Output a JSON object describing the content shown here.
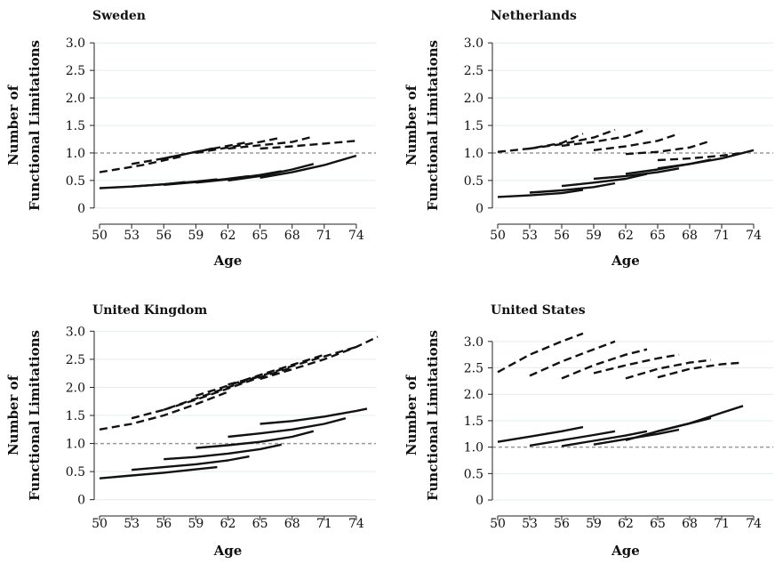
{
  "chart_data": [
    {
      "type": "line",
      "title": "Sweden",
      "xlabel": "Age",
      "ylabel": [
        "Number of",
        "Functional Limitations"
      ],
      "xticks": [
        50,
        53,
        56,
        59,
        62,
        65,
        68,
        71,
        74
      ],
      "yticks": [
        0,
        0.5,
        1.0,
        1.5,
        2.0,
        2.5,
        3.0
      ],
      "ytick_labels": [
        "0",
        "0.5",
        "1.0",
        "1.5",
        "2.0",
        "2.5",
        "3.0"
      ],
      "xlim": [
        49.5,
        76
      ],
      "ylim": [
        -0.1,
        3.1
      ],
      "reference_y": 1.0,
      "series": [
        {
          "style": "dashed",
          "x": [
            50,
            54,
            58
          ],
          "y": [
            0.65,
            0.78,
            0.95
          ]
        },
        {
          "style": "dashed",
          "x": [
            53,
            56,
            59,
            61
          ],
          "y": [
            0.8,
            0.9,
            1.02,
            1.1
          ]
        },
        {
          "style": "dashed",
          "x": [
            56,
            59,
            62,
            64
          ],
          "y": [
            0.9,
            1.02,
            1.13,
            1.2
          ]
        },
        {
          "style": "dashed",
          "x": [
            59,
            62,
            65,
            67
          ],
          "y": [
            1.0,
            1.1,
            1.2,
            1.28
          ]
        },
        {
          "style": "dashed",
          "x": [
            62,
            65,
            68,
            70
          ],
          "y": [
            1.08,
            1.14,
            1.2,
            1.3
          ]
        },
        {
          "style": "dashed",
          "x": [
            65,
            68,
            71,
            74
          ],
          "y": [
            1.08,
            1.12,
            1.17,
            1.22
          ]
        },
        {
          "style": "solid",
          "x": [
            50,
            53,
            56,
            58
          ],
          "y": [
            0.36,
            0.39,
            0.43,
            0.47
          ]
        },
        {
          "style": "solid",
          "x": [
            53,
            56,
            59,
            61
          ],
          "y": [
            0.39,
            0.43,
            0.48,
            0.52
          ]
        },
        {
          "style": "solid",
          "x": [
            56,
            59,
            62,
            64
          ],
          "y": [
            0.42,
            0.47,
            0.53,
            0.58
          ]
        },
        {
          "style": "solid",
          "x": [
            59,
            62,
            65,
            67
          ],
          "y": [
            0.46,
            0.52,
            0.6,
            0.67
          ]
        },
        {
          "style": "solid",
          "x": [
            62,
            65,
            68,
            70
          ],
          "y": [
            0.5,
            0.58,
            0.7,
            0.8
          ]
        },
        {
          "style": "solid",
          "x": [
            65,
            68,
            71,
            74
          ],
          "y": [
            0.55,
            0.65,
            0.78,
            0.95
          ]
        }
      ]
    },
    {
      "type": "line",
      "title": "Netherlands",
      "xlabel": "Age",
      "ylabel": [
        "Number of",
        "Functional Limitations"
      ],
      "xticks": [
        50,
        53,
        56,
        59,
        62,
        65,
        68,
        71,
        74
      ],
      "yticks": [
        0,
        0.5,
        1.0,
        1.5,
        2.0,
        2.5,
        3.0
      ],
      "ytick_labels": [
        "0",
        "0.5",
        "1.0",
        "1.5",
        "2.0",
        "2.5",
        "3.0"
      ],
      "xlim": [
        49.5,
        76
      ],
      "ylim": [
        -0.1,
        3.1
      ],
      "reference_y": 1.0,
      "series": [
        {
          "style": "dashed",
          "x": [
            50,
            53,
            56,
            58
          ],
          "y": [
            1.02,
            1.08,
            1.18,
            1.35
          ]
        },
        {
          "style": "dashed",
          "x": [
            53,
            56,
            59,
            61
          ],
          "y": [
            1.08,
            1.16,
            1.28,
            1.42
          ]
        },
        {
          "style": "dashed",
          "x": [
            56,
            59,
            62,
            64
          ],
          "y": [
            1.13,
            1.2,
            1.3,
            1.43
          ]
        },
        {
          "style": "dashed",
          "x": [
            59,
            62,
            65,
            67
          ],
          "y": [
            1.05,
            1.12,
            1.22,
            1.35
          ]
        },
        {
          "style": "dashed",
          "x": [
            62,
            65,
            68,
            70
          ],
          "y": [
            0.98,
            1.02,
            1.1,
            1.22
          ]
        },
        {
          "style": "dashed",
          "x": [
            65,
            68,
            71,
            73
          ],
          "y": [
            0.87,
            0.9,
            0.95,
            1.0
          ]
        },
        {
          "style": "solid",
          "x": [
            50,
            53,
            56,
            58
          ],
          "y": [
            0.2,
            0.23,
            0.27,
            0.33
          ]
        },
        {
          "style": "solid",
          "x": [
            53,
            56,
            59,
            61
          ],
          "y": [
            0.28,
            0.32,
            0.38,
            0.45
          ]
        },
        {
          "style": "solid",
          "x": [
            56,
            59,
            62,
            64
          ],
          "y": [
            0.4,
            0.46,
            0.53,
            0.62
          ]
        },
        {
          "style": "solid",
          "x": [
            59,
            62,
            65,
            67
          ],
          "y": [
            0.53,
            0.58,
            0.65,
            0.72
          ]
        },
        {
          "style": "solid",
          "x": [
            62,
            65,
            68,
            70
          ],
          "y": [
            0.62,
            0.7,
            0.8,
            0.88
          ]
        },
        {
          "style": "solid",
          "x": [
            65,
            68,
            71,
            74
          ],
          "y": [
            0.72,
            0.8,
            0.9,
            1.05
          ]
        }
      ]
    },
    {
      "type": "line",
      "title": "United Kingdom",
      "xlabel": "Age",
      "ylabel": [
        "Number of",
        "Functional Limitations"
      ],
      "xticks": [
        50,
        53,
        56,
        59,
        62,
        65,
        68,
        71,
        74
      ],
      "yticks": [
        0,
        0.5,
        1.0,
        1.5,
        2.0,
        2.5,
        3.0
      ],
      "ytick_labels": [
        "0",
        "0.5",
        "1.0",
        "1.5",
        "2.0",
        "2.5",
        "3.0"
      ],
      "xlim": [
        49.5,
        76
      ],
      "ylim": [
        -0.1,
        3.1
      ],
      "reference_y": 1.0,
      "series": [
        {
          "style": "dashed",
          "x": [
            50,
            53,
            56,
            59,
            62
          ],
          "y": [
            1.25,
            1.35,
            1.5,
            1.7,
            1.92
          ]
        },
        {
          "style": "dashed",
          "x": [
            53,
            56,
            59,
            62,
            65
          ],
          "y": [
            1.45,
            1.6,
            1.8,
            2.0,
            2.2
          ]
        },
        {
          "style": "dashed",
          "x": [
            56,
            59,
            62,
            65,
            68
          ],
          "y": [
            1.6,
            1.78,
            1.98,
            2.18,
            2.35
          ]
        },
        {
          "style": "dashed",
          "x": [
            59,
            62,
            65,
            68,
            71
          ],
          "y": [
            1.85,
            2.03,
            2.22,
            2.4,
            2.58
          ]
        },
        {
          "style": "dashed",
          "x": [
            62,
            65,
            68,
            71,
            74
          ],
          "y": [
            2.05,
            2.2,
            2.38,
            2.55,
            2.72
          ]
        },
        {
          "style": "dashed",
          "x": [
            65,
            68,
            71,
            74,
            76
          ],
          "y": [
            2.15,
            2.32,
            2.5,
            2.72,
            2.9
          ]
        },
        {
          "style": "solid",
          "x": [
            50,
            53,
            56,
            59,
            61
          ],
          "y": [
            0.38,
            0.43,
            0.48,
            0.54,
            0.58
          ]
        },
        {
          "style": "solid",
          "x": [
            53,
            56,
            59,
            62,
            64
          ],
          "y": [
            0.53,
            0.58,
            0.63,
            0.7,
            0.77
          ]
        },
        {
          "style": "solid",
          "x": [
            56,
            59,
            62,
            65,
            67
          ],
          "y": [
            0.72,
            0.76,
            0.82,
            0.9,
            0.98
          ]
        },
        {
          "style": "solid",
          "x": [
            59,
            62,
            65,
            68,
            70
          ],
          "y": [
            0.92,
            0.97,
            1.03,
            1.12,
            1.22
          ]
        },
        {
          "style": "solid",
          "x": [
            62,
            65,
            68,
            71,
            73
          ],
          "y": [
            1.12,
            1.18,
            1.25,
            1.35,
            1.45
          ]
        },
        {
          "style": "solid",
          "x": [
            65,
            68,
            71,
            74,
            75
          ],
          "y": [
            1.35,
            1.4,
            1.48,
            1.58,
            1.62
          ]
        }
      ]
    },
    {
      "type": "line",
      "title": "United States",
      "xlabel": "Age",
      "ylabel": [
        "Number of",
        "Functional Limitations"
      ],
      "xticks": [
        50,
        53,
        56,
        59,
        62,
        65,
        68,
        71,
        74
      ],
      "yticks": [
        0,
        0.5,
        1.0,
        1.5,
        2.0,
        2.5,
        3.0
      ],
      "ytick_labels": [
        "0",
        "0.5",
        "1.0",
        "1.5",
        "2.0",
        "2.5",
        "3.0"
      ],
      "xlim": [
        49.5,
        76
      ],
      "ylim": [
        -0.1,
        3.3
      ],
      "reference_y": 1.0,
      "series": [
        {
          "style": "dashed",
          "x": [
            50,
            53,
            56,
            58
          ],
          "y": [
            2.42,
            2.75,
            3.0,
            3.15
          ]
        },
        {
          "style": "dashed",
          "x": [
            53,
            56,
            59,
            61
          ],
          "y": [
            2.35,
            2.62,
            2.85,
            3.0
          ]
        },
        {
          "style": "dashed",
          "x": [
            56,
            59,
            62,
            64
          ],
          "y": [
            2.3,
            2.55,
            2.75,
            2.85
          ]
        },
        {
          "style": "dashed",
          "x": [
            59,
            62,
            65,
            67
          ],
          "y": [
            2.4,
            2.55,
            2.68,
            2.75
          ]
        },
        {
          "style": "dashed",
          "x": [
            62,
            65,
            68,
            70
          ],
          "y": [
            2.3,
            2.48,
            2.6,
            2.65
          ]
        },
        {
          "style": "dashed",
          "x": [
            65,
            68,
            71,
            73
          ],
          "y": [
            2.32,
            2.48,
            2.57,
            2.6
          ]
        },
        {
          "style": "solid",
          "x": [
            50,
            53,
            56,
            58
          ],
          "y": [
            1.1,
            1.2,
            1.3,
            1.38
          ]
        },
        {
          "style": "solid",
          "x": [
            53,
            56,
            59,
            61
          ],
          "y": [
            1.03,
            1.13,
            1.23,
            1.3
          ]
        },
        {
          "style": "solid",
          "x": [
            56,
            59,
            62,
            64
          ],
          "y": [
            1.02,
            1.12,
            1.22,
            1.3
          ]
        },
        {
          "style": "solid",
          "x": [
            59,
            62,
            65,
            67
          ],
          "y": [
            1.05,
            1.15,
            1.25,
            1.33
          ]
        },
        {
          "style": "solid",
          "x": [
            62,
            65,
            68,
            70
          ],
          "y": [
            1.13,
            1.3,
            1.45,
            1.55
          ]
        },
        {
          "style": "solid",
          "x": [
            65,
            68,
            71,
            73
          ],
          "y": [
            1.3,
            1.45,
            1.65,
            1.78
          ]
        }
      ]
    }
  ]
}
